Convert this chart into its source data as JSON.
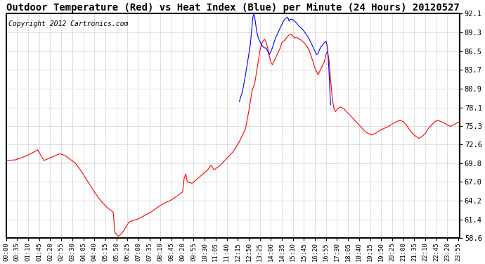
{
  "title": "Outdoor Temperature (Red) vs Heat Index (Blue) per Minute (24 Hours) 20120527",
  "copyright": "Copyright 2012 Cartronics.com",
  "ylabel_right_ticks": [
    58.6,
    61.4,
    64.2,
    67.0,
    69.8,
    72.6,
    75.3,
    78.1,
    80.9,
    83.7,
    86.5,
    89.3,
    92.1
  ],
  "ymin": 58.6,
  "ymax": 92.1,
  "red_color": "#ff0000",
  "blue_color": "#0000ff",
  "bg_color": "#ffffff",
  "grid_color": "#b0b0b0",
  "title_fontsize": 10,
  "copyright_fontsize": 7,
  "tick_interval_minutes": 35,
  "total_minutes": 1440,
  "red_keypoints": [
    [
      0,
      70.2
    ],
    [
      30,
      70.3
    ],
    [
      60,
      70.8
    ],
    [
      90,
      71.5
    ],
    [
      100,
      71.8
    ],
    [
      110,
      71.0
    ],
    [
      120,
      70.2
    ],
    [
      150,
      70.8
    ],
    [
      170,
      71.2
    ],
    [
      185,
      71.0
    ],
    [
      200,
      70.5
    ],
    [
      220,
      69.8
    ],
    [
      240,
      68.5
    ],
    [
      260,
      67.0
    ],
    [
      280,
      65.5
    ],
    [
      300,
      64.2
    ],
    [
      320,
      63.2
    ],
    [
      340,
      62.5
    ],
    [
      345,
      59.5
    ],
    [
      355,
      58.9
    ],
    [
      360,
      59.0
    ],
    [
      370,
      59.5
    ],
    [
      380,
      60.3
    ],
    [
      390,
      61.0
    ],
    [
      400,
      61.2
    ],
    [
      420,
      61.5
    ],
    [
      440,
      62.0
    ],
    [
      460,
      62.5
    ],
    [
      480,
      63.2
    ],
    [
      500,
      63.8
    ],
    [
      520,
      64.2
    ],
    [
      540,
      64.8
    ],
    [
      560,
      65.5
    ],
    [
      565,
      67.5
    ],
    [
      570,
      68.2
    ],
    [
      575,
      67.0
    ],
    [
      590,
      66.8
    ],
    [
      600,
      67.2
    ],
    [
      620,
      68.0
    ],
    [
      640,
      68.8
    ],
    [
      650,
      69.5
    ],
    [
      660,
      68.8
    ],
    [
      680,
      69.5
    ],
    [
      700,
      70.5
    ],
    [
      720,
      71.5
    ],
    [
      740,
      73.0
    ],
    [
      760,
      75.0
    ],
    [
      770,
      77.5
    ],
    [
      775,
      79.0
    ],
    [
      780,
      80.5
    ],
    [
      790,
      82.0
    ],
    [
      795,
      83.5
    ],
    [
      800,
      85.0
    ],
    [
      805,
      86.5
    ],
    [
      810,
      87.5
    ],
    [
      815,
      88.0
    ],
    [
      820,
      88.3
    ],
    [
      825,
      87.8
    ],
    [
      830,
      87.0
    ],
    [
      835,
      85.8
    ],
    [
      840,
      84.8
    ],
    [
      845,
      84.5
    ],
    [
      850,
      85.0
    ],
    [
      855,
      85.5
    ],
    [
      860,
      86.0
    ],
    [
      865,
      86.5
    ],
    [
      870,
      87.0
    ],
    [
      875,
      87.8
    ],
    [
      880,
      88.0
    ],
    [
      885,
      88.2
    ],
    [
      890,
      88.5
    ],
    [
      895,
      88.8
    ],
    [
      900,
      89.0
    ],
    [
      905,
      89.0
    ],
    [
      910,
      88.8
    ],
    [
      915,
      88.5
    ],
    [
      920,
      88.5
    ],
    [
      925,
      88.5
    ],
    [
      930,
      88.3
    ],
    [
      935,
      88.2
    ],
    [
      940,
      88.0
    ],
    [
      945,
      87.8
    ],
    [
      950,
      87.5
    ],
    [
      955,
      87.2
    ],
    [
      960,
      86.8
    ],
    [
      965,
      86.2
    ],
    [
      970,
      85.5
    ],
    [
      975,
      84.8
    ],
    [
      980,
      84.0
    ],
    [
      985,
      83.5
    ],
    [
      990,
      83.0
    ],
    [
      995,
      83.5
    ],
    [
      1000,
      84.0
    ],
    [
      1005,
      84.5
    ],
    [
      1010,
      85.0
    ],
    [
      1015,
      86.0
    ],
    [
      1020,
      86.5
    ],
    [
      1025,
      85.0
    ],
    [
      1030,
      82.0
    ],
    [
      1035,
      79.5
    ],
    [
      1040,
      78.0
    ],
    [
      1045,
      77.5
    ],
    [
      1050,
      77.8
    ],
    [
      1060,
      78.2
    ],
    [
      1070,
      78.0
    ],
    [
      1080,
      77.5
    ],
    [
      1090,
      77.0
    ],
    [
      1100,
      76.5
    ],
    [
      1110,
      76.0
    ],
    [
      1120,
      75.5
    ],
    [
      1130,
      75.0
    ],
    [
      1140,
      74.5
    ],
    [
      1150,
      74.2
    ],
    [
      1160,
      74.0
    ],
    [
      1170,
      74.2
    ],
    [
      1180,
      74.5
    ],
    [
      1190,
      74.8
    ],
    [
      1200,
      75.0
    ],
    [
      1210,
      75.2
    ],
    [
      1220,
      75.5
    ],
    [
      1230,
      75.8
    ],
    [
      1240,
      76.0
    ],
    [
      1250,
      76.2
    ],
    [
      1260,
      76.0
    ],
    [
      1270,
      75.5
    ],
    [
      1280,
      74.8
    ],
    [
      1290,
      74.2
    ],
    [
      1300,
      73.8
    ],
    [
      1310,
      73.5
    ],
    [
      1320,
      73.8
    ],
    [
      1330,
      74.2
    ],
    [
      1340,
      75.0
    ],
    [
      1350,
      75.5
    ],
    [
      1360,
      76.0
    ],
    [
      1370,
      76.2
    ],
    [
      1380,
      76.0
    ],
    [
      1390,
      75.8
    ],
    [
      1400,
      75.5
    ],
    [
      1410,
      75.3
    ],
    [
      1420,
      75.5
    ],
    [
      1430,
      75.8
    ],
    [
      1439,
      76.0
    ]
  ],
  "blue_keypoints": [
    [
      740,
      79.0
    ],
    [
      750,
      80.5
    ],
    [
      758,
      82.5
    ],
    [
      765,
      84.5
    ],
    [
      770,
      86.0
    ],
    [
      775,
      87.5
    ],
    [
      778,
      89.0
    ],
    [
      780,
      90.0
    ],
    [
      782,
      91.2
    ],
    [
      784,
      91.8
    ],
    [
      786,
      92.0
    ],
    [
      788,
      91.8
    ],
    [
      790,
      91.2
    ],
    [
      792,
      90.5
    ],
    [
      795,
      89.5
    ],
    [
      800,
      88.5
    ],
    [
      805,
      88.0
    ],
    [
      810,
      87.5
    ],
    [
      815,
      87.2
    ],
    [
      820,
      87.0
    ],
    [
      825,
      87.0
    ],
    [
      830,
      86.5
    ],
    [
      835,
      86.0
    ],
    [
      840,
      86.5
    ],
    [
      845,
      87.0
    ],
    [
      850,
      87.8
    ],
    [
      855,
      88.5
    ],
    [
      860,
      89.0
    ],
    [
      865,
      89.5
    ],
    [
      870,
      90.0
    ],
    [
      875,
      90.5
    ],
    [
      880,
      91.0
    ],
    [
      885,
      91.3
    ],
    [
      890,
      91.5
    ],
    [
      892,
      91.6
    ],
    [
      894,
      91.5
    ],
    [
      896,
      91.3
    ],
    [
      898,
      91.0
    ],
    [
      900,
      91.2
    ],
    [
      905,
      91.3
    ],
    [
      910,
      91.2
    ],
    [
      915,
      91.0
    ],
    [
      920,
      90.8
    ],
    [
      925,
      90.5
    ],
    [
      930,
      90.2
    ],
    [
      935,
      90.0
    ],
    [
      940,
      89.8
    ],
    [
      945,
      89.5
    ],
    [
      950,
      89.2
    ],
    [
      955,
      88.8
    ],
    [
      960,
      88.5
    ],
    [
      965,
      88.0
    ],
    [
      970,
      87.5
    ],
    [
      975,
      87.0
    ],
    [
      980,
      86.5
    ],
    [
      985,
      86.0
    ],
    [
      990,
      86.2
    ],
    [
      995,
      86.8
    ],
    [
      1000,
      87.2
    ],
    [
      1005,
      87.5
    ],
    [
      1010,
      87.8
    ],
    [
      1015,
      88.0
    ],
    [
      1018,
      87.5
    ],
    [
      1020,
      86.8
    ],
    [
      1022,
      85.5
    ],
    [
      1024,
      84.0
    ],
    [
      1026,
      82.0
    ],
    [
      1028,
      80.0
    ],
    [
      1030,
      78.5
    ]
  ]
}
